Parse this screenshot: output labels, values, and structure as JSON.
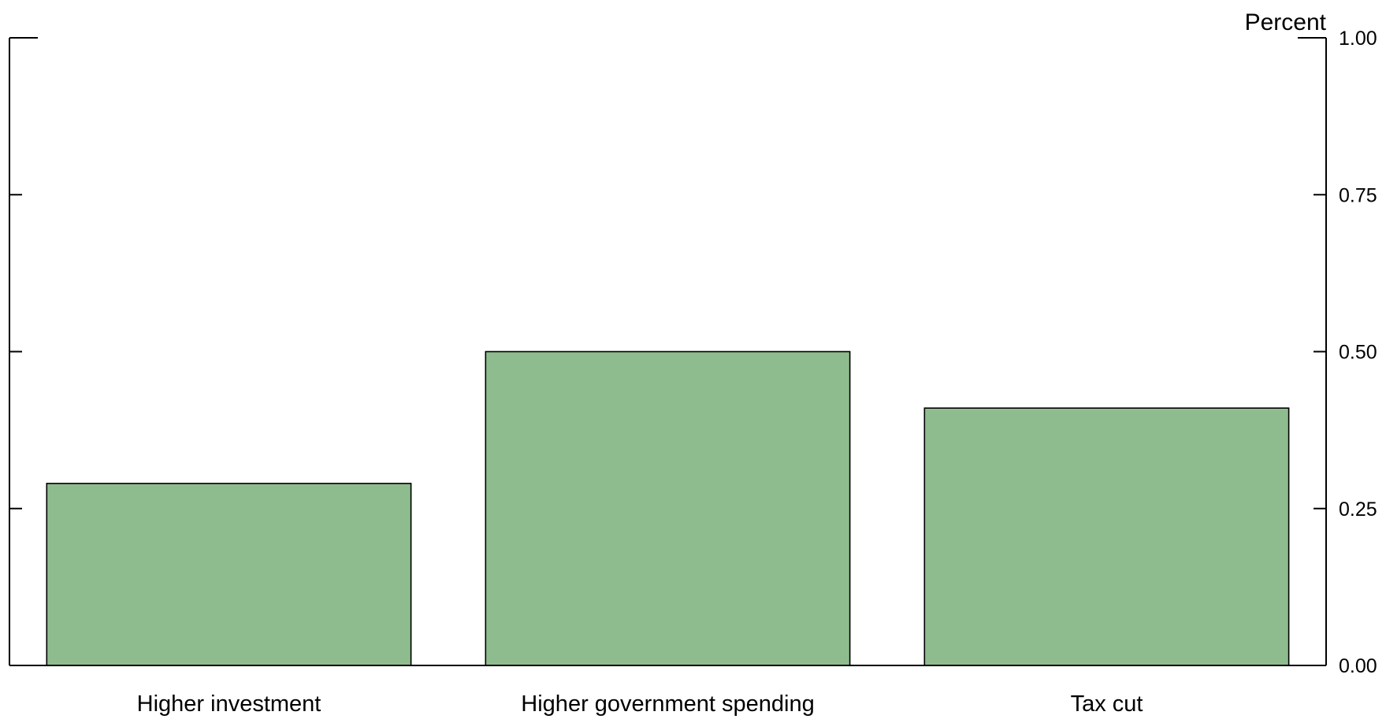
{
  "chart_data": {
    "type": "bar",
    "title": "",
    "xlabel": "",
    "ylabel": "",
    "unit_label": "Percent",
    "categories": [
      "Higher investment",
      "Higher government spending",
      "Tax cut"
    ],
    "values": [
      0.29,
      0.5,
      0.41
    ],
    "ylim": [
      0,
      1
    ],
    "yticks": [
      0,
      0.25,
      0.5,
      0.75,
      1
    ],
    "ytick_labels": [
      "0.00",
      "0.25",
      "0.50",
      "0.75",
      "1.00"
    ],
    "grid": false,
    "legend": "none",
    "bar_color": "#8fbc8f",
    "bar_edge_color": "#000000",
    "axis_color": "#000000"
  }
}
